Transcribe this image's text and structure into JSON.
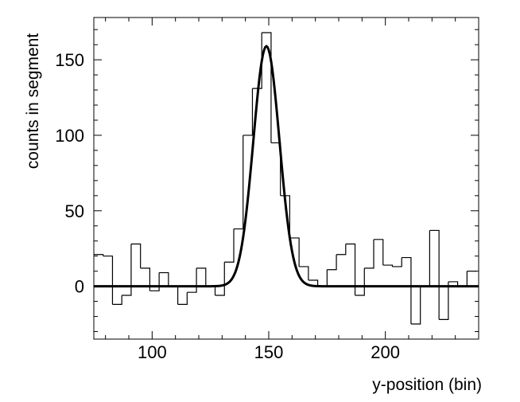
{
  "chart_data": {
    "type": "histogram",
    "title": "",
    "xlabel": "y-position (bin)",
    "ylabel": "counts in segment",
    "xlim": [
      75,
      240
    ],
    "ylim": [
      -35,
      178
    ],
    "x_ticks": [
      100,
      150,
      200
    ],
    "y_ticks": [
      0,
      50,
      100,
      150
    ],
    "x_tick_labels": [
      "100",
      "150",
      "200"
    ],
    "y_tick_labels": [
      "0",
      "50",
      "100",
      "150"
    ],
    "grid": false,
    "legend": "none",
    "colors": {
      "histogram": "#000000",
      "fit": "#000000"
    },
    "series": [
      {
        "kind": "histogram",
        "bin_width": 4,
        "bin_edges": [
          75,
          79,
          83,
          87,
          91,
          95,
          99,
          103,
          107,
          111,
          115,
          119,
          123,
          127,
          131,
          135,
          139,
          143,
          147,
          151,
          155,
          159,
          163,
          167,
          171,
          175,
          179,
          183,
          187,
          191,
          195,
          199,
          203,
          207,
          211,
          215,
          219,
          223,
          227,
          231,
          235,
          239
        ],
        "values": [
          21,
          20,
          -12,
          -6,
          28,
          12,
          -3,
          9,
          0,
          -12,
          -4,
          12,
          0,
          -6,
          16,
          38,
          100,
          131,
          168,
          95,
          60,
          32,
          13,
          4,
          0,
          11,
          21,
          28,
          -6,
          12,
          31,
          14,
          13,
          19,
          -25,
          0,
          37,
          -22,
          3,
          0,
          10
        ]
      },
      {
        "kind": "gaussian_fit",
        "amplitude": 159,
        "mean": 149,
        "sigma": 5.6,
        "baseline": 0,
        "x_range": [
          75,
          240
        ]
      }
    ]
  }
}
